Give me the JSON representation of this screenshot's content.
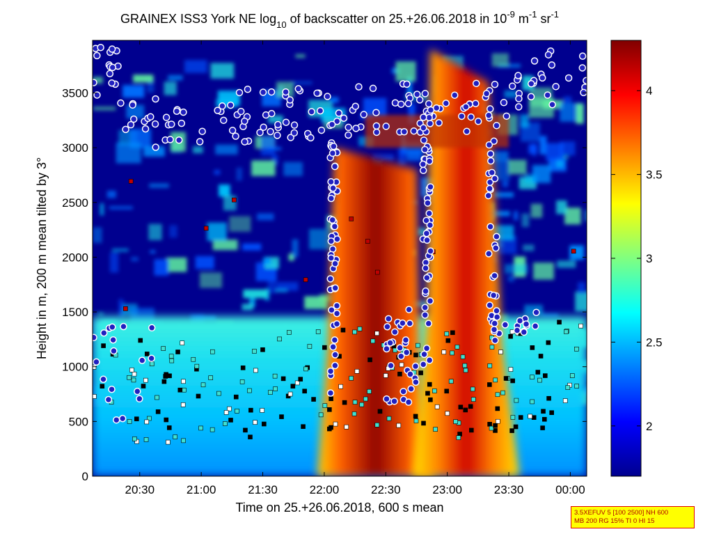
{
  "title": {
    "prefix": "GRAINEX ISS3 York NE log",
    "sub": "10",
    "mid": " of backscatter on 25.+26.06.2018 in 10",
    "exp1": "-9",
    "unit1": " m",
    "exp2": "-1",
    "unit2": " sr",
    "exp3": "-1"
  },
  "xlabel": "Time on 25.+26.06.2018, 600 s mean",
  "ylabel": "Height in m, 200 m mean tilted by 3°",
  "info_box": [
    "3.5XEFUV 5 [100 2500] NH 600",
    "MB 200 RG 15% TI 0 HI 15"
  ],
  "colors": {
    "low": "#00008f",
    "high": "#800000",
    "marker_circle_face": "#2020c0",
    "marker_circle_edge": "#ffffff",
    "marker_square_dark": "#000000",
    "marker_square_cyan": "#40e0d0",
    "marker_square_white": "#ffffff",
    "marker_square_red": "#c00000"
  },
  "chart_data": {
    "type": "heatmap",
    "title": "GRAINEX ISS3 York NE log10 of backscatter on 25.+26.06.2018 in 10^-9 m^-1 sr^-1",
    "xlabel": "Time on 25.+26.06.2018, 600 s mean",
    "ylabel": "Height in m, 200 m mean tilted by 3°",
    "x_ticks": [
      "20:30",
      "21:00",
      "21:30",
      "22:00",
      "22:30",
      "23:00",
      "23:30",
      "00:00"
    ],
    "y_ticks": [
      0,
      500,
      1000,
      1500,
      2000,
      2500,
      3000,
      3500
    ],
    "x_range": [
      "20:07",
      "00:08"
    ],
    "ylim": [
      0,
      3980
    ],
    "colorbar": {
      "ticks": [
        2,
        2.5,
        3,
        3.5,
        4
      ],
      "range": [
        1.7,
        4.3
      ],
      "colormap": "jet"
    },
    "features": {
      "boundary_layer_top_m": [
        [
          "20:10",
          560
        ],
        [
          "20:30",
          600
        ],
        [
          "21:00",
          580
        ],
        [
          "21:30",
          620
        ],
        [
          "22:00",
          700
        ],
        [
          "22:30",
          650
        ],
        [
          "23:00",
          620
        ],
        [
          "23:30",
          680
        ],
        [
          "00:00",
          750
        ]
      ],
      "strong_plume_1": {
        "from": "22:05",
        "to": "22:45",
        "max_height_m": 3000
      },
      "strong_plume_2": {
        "from": "22:50",
        "to": "23:20",
        "max_height_m": 3900
      },
      "cloud_layer_markers_m": [
        [
          "20:20",
          3300
        ],
        [
          "21:00",
          3100
        ],
        [
          "21:30",
          3350
        ],
        [
          "22:00",
          3250
        ],
        [
          "22:30",
          3400
        ],
        [
          "23:00",
          3250
        ],
        [
          "23:30",
          3500
        ],
        [
          "00:00",
          3700
        ]
      ]
    }
  }
}
